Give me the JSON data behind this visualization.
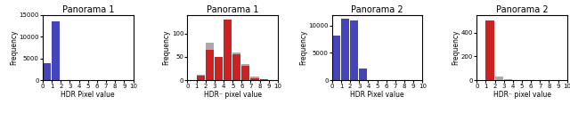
{
  "titles": [
    "Panorama 1",
    "Panorama 1",
    "Panorama 2",
    "Panorama 2"
  ],
  "xlabels": [
    "HDR Pixel value",
    "HDR⁻ pixel value",
    "HDR Pixel value",
    "HDR⁻ pixel value"
  ],
  "ylabel": "Frequency",
  "xticks": [
    0,
    1,
    2,
    3,
    4,
    5,
    6,
    7,
    8,
    9,
    10
  ],
  "panel1_bins": [
    0,
    1,
    2,
    3,
    4,
    5,
    6,
    7,
    8,
    9,
    10
  ],
  "panel1_blue_vals": [
    4000,
    13500,
    30,
    5,
    2,
    1,
    1,
    0,
    0,
    0
  ],
  "panel1_ylim": [
    0,
    15000
  ],
  "panel1_yticks": 5000,
  "panel2_bins": [
    0,
    1,
    2,
    3,
    4,
    5,
    6,
    7,
    8,
    9,
    10
  ],
  "panel2_red_vals": [
    0,
    10,
    65,
    50,
    130,
    55,
    30,
    5,
    2,
    0
  ],
  "panel2_gray_vals": [
    0,
    12,
    80,
    50,
    95,
    60,
    35,
    7,
    3,
    0
  ],
  "panel2_ylim": [
    0,
    140
  ],
  "panel2_yticks": 50,
  "panel3_bins": [
    0,
    1,
    2,
    3,
    4,
    5,
    6,
    7,
    8,
    9,
    10
  ],
  "panel3_blue_vals": [
    8200,
    11200,
    11000,
    2200,
    100,
    20,
    5,
    1,
    0,
    0
  ],
  "panel3_red_vals": [
    0,
    0,
    80,
    30,
    3,
    1,
    0,
    0,
    0,
    0
  ],
  "panel3_ylim": [
    0,
    12000
  ],
  "panel3_yticks": 5000,
  "panel4_bins": [
    0,
    1,
    2,
    3,
    4,
    5,
    6,
    7,
    8,
    9,
    10
  ],
  "panel4_red_vals": [
    0,
    500,
    5,
    1,
    0,
    0,
    0,
    0,
    0,
    0
  ],
  "panel4_gray_vals": [
    0,
    140,
    30,
    8,
    2,
    0,
    0,
    0,
    0,
    0
  ],
  "panel4_ylim": [
    0,
    550
  ],
  "panel4_yticks": 200,
  "blue_color": "#4444bb",
  "red_color": "#cc2222",
  "gray_color": "#aaaaaa",
  "title_fontsize": 7,
  "label_fontsize": 5.5,
  "tick_fontsize": 5
}
